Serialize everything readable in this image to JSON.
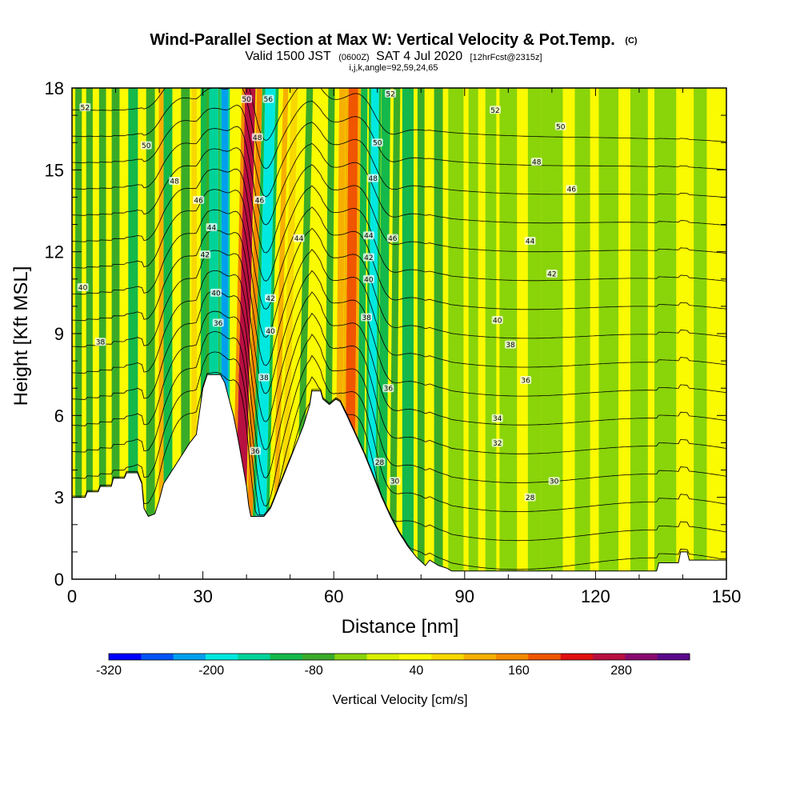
{
  "title": {
    "main": "Wind-Parallel Section at Max W: Vertical Velocity & Pot.Temp.",
    "main_unit": "(C)",
    "valid_pre": "Valid 1500 JST",
    "valid_utc": "(0600Z)",
    "valid_post": "SAT 4 Jul 2020",
    "forecast": "[12hrFcst@2315z]",
    "params": "i,j,k,angle=92,59,24,65"
  },
  "chart_data": {
    "type": "heatmap",
    "xlabel": "Distance [nm]",
    "ylabel": "Height [Kft MSL]",
    "xlim": [
      0,
      150
    ],
    "ylim": [
      0,
      18
    ],
    "xticks": [
      0,
      30,
      60,
      90,
      120,
      150
    ],
    "yticks": [
      0,
      3,
      6,
      9,
      12,
      15,
      18
    ],
    "colorbar": {
      "title": "Vertical Velocity [cm/s]",
      "tick_labels": [
        "-320",
        "-200",
        "-80",
        "40",
        "160",
        "280"
      ],
      "tick_values": [
        -320,
        -200,
        -80,
        40,
        160,
        280
      ],
      "levels": [
        -320,
        -280,
        -240,
        -200,
        -160,
        -120,
        -80,
        -40,
        0,
        40,
        80,
        120,
        160,
        200,
        240,
        280,
        320,
        360
      ],
      "colors": [
        "#0000ff",
        "#0055f5",
        "#00a0ee",
        "#00e8e0",
        "#00d39a",
        "#14b84b",
        "#3aab28",
        "#8ad40a",
        "#d9f000",
        "#fafa00",
        "#f8d800",
        "#f6b000",
        "#f58a00",
        "#f05500",
        "#e01010",
        "#b81040",
        "#8a0a70",
        "#5a0a8c"
      ]
    },
    "terrain_top_kft": [
      [
        0,
        3.0
      ],
      [
        3,
        3.0
      ],
      [
        3.5,
        3.2
      ],
      [
        6,
        3.2
      ],
      [
        6.5,
        3.4
      ],
      [
        9,
        3.4
      ],
      [
        9.5,
        3.7
      ],
      [
        12,
        3.7
      ],
      [
        12.5,
        3.9
      ],
      [
        15,
        3.9
      ],
      [
        16,
        3.5
      ],
      [
        16.5,
        2.6
      ],
      [
        17.5,
        2.3
      ],
      [
        19,
        2.4
      ],
      [
        20,
        2.9
      ],
      [
        21,
        3.5
      ],
      [
        23,
        4.0
      ],
      [
        25,
        4.5
      ],
      [
        27,
        5.0
      ],
      [
        28.5,
        5.3
      ],
      [
        30,
        7.0
      ],
      [
        31,
        7.5
      ],
      [
        34,
        7.5
      ],
      [
        35,
        7.2
      ],
      [
        36,
        6.6
      ],
      [
        37,
        6.0
      ],
      [
        38,
        5.2
      ],
      [
        39,
        4.3
      ],
      [
        40,
        3.4
      ],
      [
        40.5,
        2.7
      ],
      [
        41,
        2.3
      ],
      [
        44,
        2.3
      ],
      [
        45.5,
        2.6
      ],
      [
        47,
        3.2
      ],
      [
        49,
        4.0
      ],
      [
        51,
        4.8
      ],
      [
        53,
        5.6
      ],
      [
        54.5,
        6.4
      ],
      [
        55,
        6.9
      ],
      [
        57,
        6.9
      ],
      [
        57.5,
        6.6
      ],
      [
        59,
        6.4
      ],
      [
        60.5,
        6.6
      ],
      [
        61.5,
        6.5
      ],
      [
        63,
        6.0
      ],
      [
        65,
        5.3
      ],
      [
        67,
        4.6
      ],
      [
        69,
        3.8
      ],
      [
        71,
        3.0
      ],
      [
        73,
        2.3
      ],
      [
        75,
        1.7
      ],
      [
        77,
        1.2
      ],
      [
        79,
        0.8
      ],
      [
        81,
        0.5
      ],
      [
        82,
        0.7
      ],
      [
        84,
        0.5
      ],
      [
        86,
        0.4
      ],
      [
        87,
        0.3
      ],
      [
        100,
        0.3
      ],
      [
        120,
        0.3
      ],
      [
        134,
        0.3
      ],
      [
        134.5,
        0.6
      ],
      [
        139,
        0.6
      ],
      [
        139.5,
        1.0
      ],
      [
        141,
        1.0
      ],
      [
        141.5,
        0.7
      ],
      [
        150,
        0.7
      ]
    ],
    "velocity_bands": [
      {
        "x": 1.5,
        "w": 1.5,
        "value": -60
      },
      {
        "x": 4,
        "w": 1.5,
        "value": -60
      },
      {
        "x": 7,
        "w": 1.6,
        "value": -80
      },
      {
        "x": 10,
        "w": 1.8,
        "value": -60
      },
      {
        "x": 14,
        "w": 2.2,
        "value": -90
      },
      {
        "x": 18,
        "w": 2.0,
        "value": -60
      },
      {
        "x": 20.5,
        "w": 1.2,
        "value": 120
      },
      {
        "x": 22,
        "w": 2.0,
        "value": -90
      },
      {
        "x": 26,
        "w": 2.0,
        "value": -80
      },
      {
        "x": 28,
        "w": 1.2,
        "value": 100
      },
      {
        "x": 30.5,
        "w": 2.0,
        "value": -100
      },
      {
        "x": 32.5,
        "w": 2.2,
        "value": -160
      },
      {
        "x": 35,
        "w": 1.5,
        "value": -240
      },
      {
        "x": 38.5,
        "w": 2.6,
        "value": 280
      },
      {
        "x": 40.5,
        "w": 1.2,
        "value": 160
      },
      {
        "x": 43,
        "w": 2.4,
        "value": -200
      },
      {
        "x": 46.5,
        "w": 1.2,
        "value": 120
      },
      {
        "x": 48.5,
        "w": 1.5,
        "value": 90
      },
      {
        "x": 52,
        "w": 1.5,
        "value": -60
      },
      {
        "x": 55.5,
        "w": 1.3,
        "value": 60
      },
      {
        "x": 58.5,
        "w": 1.5,
        "value": -70
      },
      {
        "x": 61,
        "w": 1.5,
        "value": 120
      },
      {
        "x": 63.5,
        "w": 2.2,
        "value": 200
      },
      {
        "x": 66,
        "w": 1.5,
        "value": -90
      },
      {
        "x": 68.5,
        "w": 1.8,
        "value": -180
      },
      {
        "x": 71,
        "w": 2.0,
        "value": -110
      },
      {
        "x": 73.5,
        "w": 1.5,
        "value": -60
      },
      {
        "x": 77,
        "w": 2.6,
        "value": -90
      },
      {
        "x": 80,
        "w": 1.6,
        "value": -60
      },
      {
        "x": 84,
        "w": 2.0,
        "value": -60
      },
      {
        "x": 88,
        "w": 3.5,
        "value": -40
      },
      {
        "x": 92,
        "w": 2.2,
        "value": -40
      },
      {
        "x": 96,
        "w": 2.5,
        "value": -30
      },
      {
        "x": 100,
        "w": 4.0,
        "value": -40
      },
      {
        "x": 106,
        "w": 3.0,
        "value": -30
      },
      {
        "x": 110,
        "w": 5.0,
        "value": -30
      },
      {
        "x": 117,
        "w": 3.5,
        "value": -30
      },
      {
        "x": 123,
        "w": 4.5,
        "value": -30
      },
      {
        "x": 130,
        "w": 4.0,
        "value": -30
      },
      {
        "x": 136,
        "w": 5.0,
        "value": -30
      },
      {
        "x": 144,
        "w": 3.0,
        "value": -30
      }
    ],
    "contour_labels": [
      {
        "text": "52",
        "x": 3,
        "y": 17.3
      },
      {
        "text": "50",
        "x": 17,
        "y": 15.9
      },
      {
        "text": "48",
        "x": 23.5,
        "y": 14.6
      },
      {
        "text": "46",
        "x": 29,
        "y": 13.9
      },
      {
        "text": "44",
        "x": 32,
        "y": 12.9
      },
      {
        "text": "42",
        "x": 30.5,
        "y": 11.9
      },
      {
        "text": "40",
        "x": 2.5,
        "y": 10.7
      },
      {
        "text": "40",
        "x": 33,
        "y": 10.5
      },
      {
        "text": "38",
        "x": 6.5,
        "y": 8.7
      },
      {
        "text": "36",
        "x": 33.5,
        "y": 9.4
      },
      {
        "text": "50",
        "x": 40,
        "y": 17.6
      },
      {
        "text": "56",
        "x": 45,
        "y": 17.6
      },
      {
        "text": "48",
        "x": 42.5,
        "y": 16.2
      },
      {
        "text": "46",
        "x": 43,
        "y": 13.9
      },
      {
        "text": "44",
        "x": 52,
        "y": 12.5
      },
      {
        "text": "42",
        "x": 45.5,
        "y": 10.3
      },
      {
        "text": "40",
        "x": 45.5,
        "y": 9.1
      },
      {
        "text": "38",
        "x": 44,
        "y": 7.4
      },
      {
        "text": "36",
        "x": 42,
        "y": 4.7
      },
      {
        "text": "52",
        "x": 73,
        "y": 17.8
      },
      {
        "text": "50",
        "x": 70,
        "y": 16.0
      },
      {
        "text": "48",
        "x": 69,
        "y": 14.7
      },
      {
        "text": "44",
        "x": 68,
        "y": 12.6
      },
      {
        "text": "46",
        "x": 73.5,
        "y": 12.5
      },
      {
        "text": "42",
        "x": 68,
        "y": 11.8
      },
      {
        "text": "40",
        "x": 68,
        "y": 11.0
      },
      {
        "text": "38",
        "x": 67.5,
        "y": 9.6
      },
      {
        "text": "36",
        "x": 72.5,
        "y": 7.0
      },
      {
        "text": "28",
        "x": 70.5,
        "y": 4.3
      },
      {
        "text": "30",
        "x": 74,
        "y": 3.6
      },
      {
        "text": "52",
        "x": 97,
        "y": 17.2
      },
      {
        "text": "50",
        "x": 112,
        "y": 16.6
      },
      {
        "text": "48",
        "x": 106.5,
        "y": 15.3
      },
      {
        "text": "46",
        "x": 114.5,
        "y": 14.3
      },
      {
        "text": "44",
        "x": 105,
        "y": 12.4
      },
      {
        "text": "42",
        "x": 110,
        "y": 11.2
      },
      {
        "text": "40",
        "x": 97.5,
        "y": 9.5
      },
      {
        "text": "38",
        "x": 100.5,
        "y": 8.6
      },
      {
        "text": "36",
        "x": 104,
        "y": 7.3
      },
      {
        "text": "34",
        "x": 97.5,
        "y": 5.9
      },
      {
        "text": "32",
        "x": 97.5,
        "y": 5.0
      },
      {
        "text": "30",
        "x": 110.5,
        "y": 3.6
      },
      {
        "text": "28",
        "x": 105,
        "y": 3.0
      }
    ],
    "theta_levels": [
      26,
      28,
      30,
      32,
      34,
      36,
      38,
      40,
      42,
      44,
      46,
      48,
      50,
      52,
      54,
      56
    ]
  }
}
